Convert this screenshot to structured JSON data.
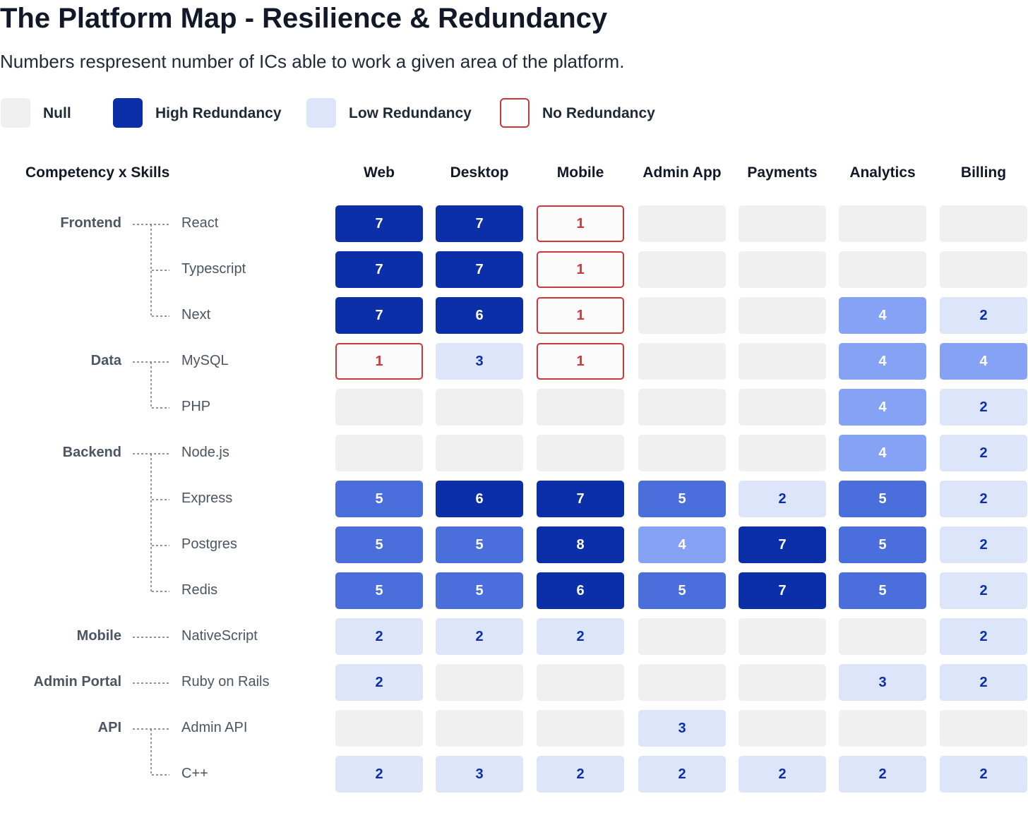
{
  "title": "The Platform Map - Resilience & Redundancy",
  "subtitle": "Numbers respresent number of ICs able to work a given area of the platform.",
  "legend": [
    {
      "label": "Null",
      "key": "null"
    },
    {
      "label": "High Redundancy",
      "key": "high"
    },
    {
      "label": "Low Redundancy",
      "key": "low"
    },
    {
      "label": "No Redundancy",
      "key": "none"
    }
  ],
  "colors": {
    "null_fill": "#f0f0f0",
    "no_redundancy_border": "#c9383a",
    "no_redundancy_text": "#c9383a",
    "no_redundancy_fill": "#fbfbfb",
    "scale": {
      "2": "#dde5fb",
      "3": "#dde5fb",
      "4": "#86a2f5",
      "5": "#4a6fdc",
      "6": "#0a2fa8",
      "7": "#0a2fa8",
      "8": "#0a2fa8"
    },
    "light_text": "#0a2fa8",
    "dark_text": "#ffffff"
  },
  "chart_data": {
    "type": "heatmap",
    "title": "The Platform Map - Resilience & Redundancy",
    "corner_label": "Competency x Skills",
    "columns": [
      "Web",
      "Desktop",
      "Mobile",
      "Admin App",
      "Payments",
      "Analytics",
      "Billing"
    ],
    "groups": [
      {
        "name": "Frontend",
        "skills": [
          "React",
          "Typescript",
          "Next"
        ]
      },
      {
        "name": "Data",
        "skills": [
          "MySQL",
          "PHP"
        ]
      },
      {
        "name": "Backend",
        "skills": [
          "Node.js",
          "Express",
          "Postgres",
          "Redis"
        ]
      },
      {
        "name": "Mobile",
        "skills": [
          "NativeScript"
        ]
      },
      {
        "name": "Admin Portal",
        "skills": [
          "Ruby on Rails"
        ]
      },
      {
        "name": "API",
        "skills": [
          "Admin API",
          "C++"
        ]
      }
    ],
    "rows": [
      {
        "skill": "React",
        "values": [
          7,
          7,
          1,
          null,
          null,
          null,
          null
        ]
      },
      {
        "skill": "Typescript",
        "values": [
          7,
          7,
          1,
          null,
          null,
          null,
          null
        ]
      },
      {
        "skill": "Next",
        "values": [
          7,
          6,
          1,
          null,
          null,
          4,
          2
        ]
      },
      {
        "skill": "MySQL",
        "values": [
          1,
          3,
          1,
          null,
          null,
          4,
          4
        ]
      },
      {
        "skill": "PHP",
        "values": [
          null,
          null,
          null,
          null,
          null,
          4,
          2
        ]
      },
      {
        "skill": "Node.js",
        "values": [
          null,
          null,
          null,
          null,
          null,
          4,
          2
        ]
      },
      {
        "skill": "Express",
        "values": [
          5,
          6,
          7,
          5,
          2,
          5,
          2
        ]
      },
      {
        "skill": "Postgres",
        "values": [
          5,
          5,
          8,
          4,
          7,
          5,
          2
        ]
      },
      {
        "skill": "Redis",
        "values": [
          5,
          5,
          6,
          5,
          7,
          5,
          2
        ]
      },
      {
        "skill": "NativeScript",
        "values": [
          2,
          2,
          2,
          null,
          null,
          null,
          2
        ]
      },
      {
        "skill": "Ruby on Rails",
        "values": [
          2,
          null,
          null,
          null,
          null,
          3,
          2
        ]
      },
      {
        "skill": "Admin API",
        "values": [
          null,
          null,
          null,
          3,
          null,
          null,
          null
        ]
      },
      {
        "skill": "C++",
        "values": [
          2,
          3,
          2,
          2,
          2,
          2,
          2
        ]
      }
    ]
  }
}
